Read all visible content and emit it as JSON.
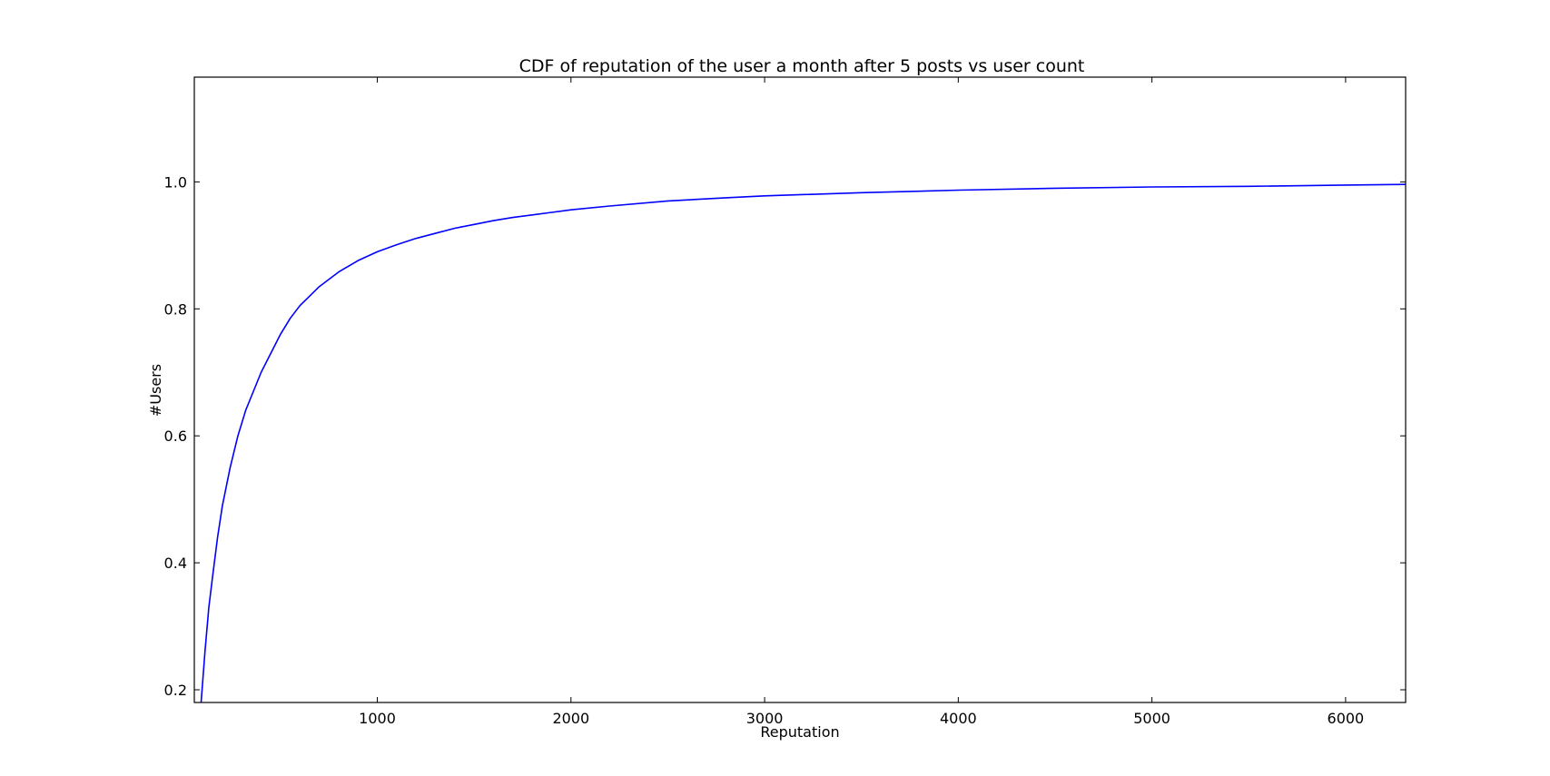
{
  "chart_data": {
    "type": "line",
    "title": "CDF of reputation of the user a month after 5 posts vs user count",
    "xlabel": "Reputation",
    "ylabel": "#Users",
    "xlim": [
      55,
      6310
    ],
    "ylim": [
      0.18,
      1.165
    ],
    "grid": false,
    "x_ticks": [
      1000,
      2000,
      3000,
      4000,
      5000,
      6000
    ],
    "x_tick_labels": [
      "1000",
      "2000",
      "3000",
      "4000",
      "5000",
      "6000"
    ],
    "y_ticks": [
      0.2,
      0.4,
      0.6,
      0.8,
      1.0
    ],
    "y_tick_labels": [
      "0.2",
      "0.4",
      "0.6",
      "0.8",
      "1.0"
    ],
    "series": [
      {
        "color": "#0000ff",
        "x": [
          90,
          110,
          130,
          150,
          175,
          200,
          240,
          280,
          320,
          360,
          400,
          450,
          500,
          550,
          600,
          650,
          700,
          800,
          900,
          1000,
          1100,
          1200,
          1300,
          1400,
          1500,
          1600,
          1700,
          1800,
          1900,
          2000,
          2200,
          2500,
          2800,
          3000,
          3500,
          4000,
          4500,
          5000,
          5500,
          6000,
          6310
        ],
        "y": [
          0.18,
          0.26,
          0.33,
          0.38,
          0.44,
          0.49,
          0.55,
          0.6,
          0.64,
          0.67,
          0.7,
          0.73,
          0.76,
          0.785,
          0.805,
          0.82,
          0.835,
          0.858,
          0.876,
          0.89,
          0.901,
          0.911,
          0.919,
          0.927,
          0.933,
          0.939,
          0.944,
          0.948,
          0.952,
          0.956,
          0.962,
          0.97,
          0.975,
          0.978,
          0.983,
          0.987,
          0.99,
          0.992,
          0.993,
          0.995,
          0.996
        ]
      }
    ]
  }
}
